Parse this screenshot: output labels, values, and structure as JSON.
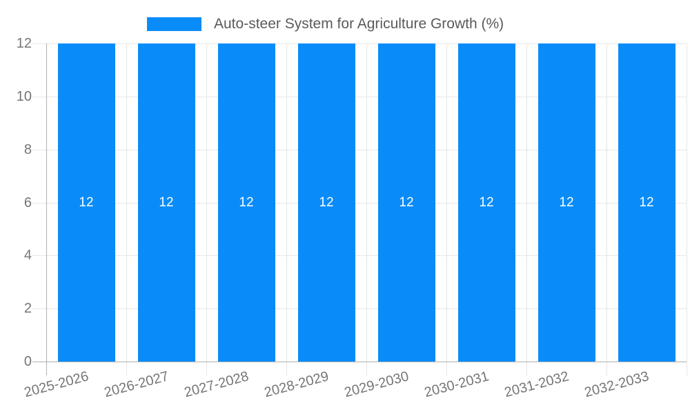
{
  "chart_data": {
    "type": "bar",
    "title": "Auto-steer System for Agriculture Growth (%)",
    "legend": {
      "position": "top",
      "entries": [
        "Auto-steer System for Agriculture Growth (%)"
      ]
    },
    "categories": [
      "2025-2026",
      "2026-2027",
      "2027-2028",
      "2028-2029",
      "2029-2030",
      "2030-2031",
      "2031-2032",
      "2032-2033"
    ],
    "series": [
      {
        "name": "Auto-steer System for Agriculture Growth (%)",
        "values": [
          12,
          12,
          12,
          12,
          12,
          12,
          12,
          12
        ]
      }
    ],
    "bar_labels": [
      "12",
      "12",
      "12",
      "12",
      "12",
      "12",
      "12",
      "12"
    ],
    "xlabel": "",
    "ylabel": "",
    "ylim": [
      0,
      12
    ],
    "yticks": [
      0,
      2,
      4,
      6,
      8,
      10,
      12
    ],
    "grid": true,
    "colors": {
      "bar": "#0a8cf8",
      "bar_label": "#ffffff",
      "grid": "#e6e6e6",
      "axis": "#b0b0b0",
      "tick_label": "#757575",
      "legend_label": "#5a5a5a",
      "background": "#ffffff"
    }
  }
}
